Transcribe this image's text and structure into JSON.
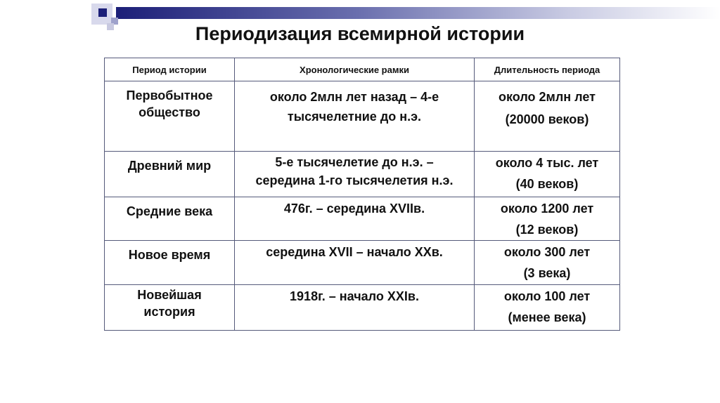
{
  "title": "Периодизация всемирной истории",
  "columns": [
    "Период истории",
    "Хронологические рамки",
    "Длительность периода"
  ],
  "rows": [
    {
      "period": "Первобытное общество",
      "range": "около 2млн лет назад – 4-е тысячелетние до н.э.",
      "duration_1": "около 2млн лет",
      "duration_2": "(20000 веков)"
    },
    {
      "period": "Древний мир",
      "range": "5-е тысячелетие до н.э. – середина 1-го тысячелетия н.э.",
      "duration_1": "около 4 тыс. лет",
      "duration_2": "(40 веков)"
    },
    {
      "period": "Средние века",
      "range": "476г. – середина XVIIв.",
      "duration_1": "около 1200 лет",
      "duration_2": "(12 веков)"
    },
    {
      "period": "Новое время",
      "range": "середина XVII – начало XXв.",
      "duration_1": "около 300 лет",
      "duration_2": "(3 века)"
    },
    {
      "period": "Новейшая история",
      "range": "1918г. – начало XXIв.",
      "duration_1": "около 100 лет",
      "duration_2": "(менее века)"
    }
  ]
}
